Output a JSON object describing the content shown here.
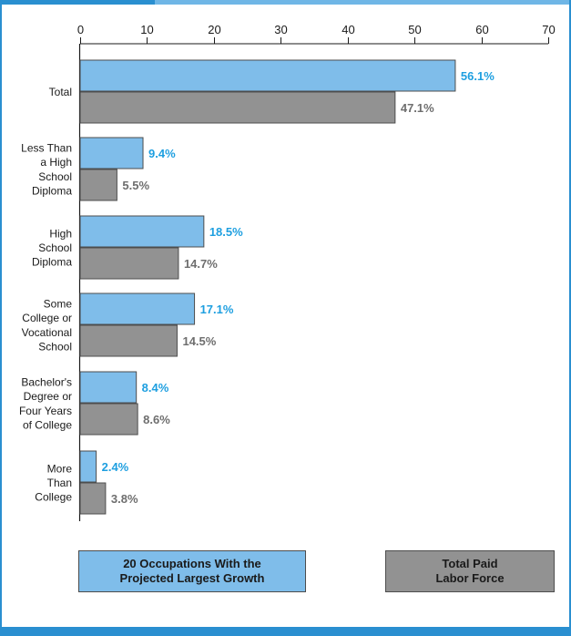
{
  "colors": {
    "frame_blue": "#2a8fd0",
    "series_a": "#7fbdea",
    "series_b": "#929292",
    "label_a": "#1e9fe0",
    "label_b": "#6e6e6e"
  },
  "chart_data": {
    "type": "bar",
    "orientation": "horizontal",
    "title": "",
    "xlabel": "",
    "ylabel": "",
    "xlim": [
      0,
      70
    ],
    "ticks": [
      0,
      10,
      20,
      30,
      40,
      50,
      60,
      70
    ],
    "tick_labels": [
      "0",
      "10",
      "20",
      "30",
      "40",
      "50",
      "60",
      "70"
    ],
    "axis_position": "top",
    "grid": false,
    "legend_position": "bottom",
    "categories": [
      [
        "Total"
      ],
      [
        "Less Than",
        "a High",
        "School",
        "Diploma"
      ],
      [
        "High",
        "School",
        "Diploma"
      ],
      [
        "Some",
        "College or",
        "Vocational",
        "School"
      ],
      [
        "Bachelor's",
        "Degree or",
        "Four Years",
        "of College"
      ],
      [
        "More",
        "Than",
        "College"
      ]
    ],
    "series": [
      {
        "name": "20 Occupations With the Projected Largest Growth",
        "legend_lines": [
          "20 Occupations With the",
          "Projected Largest Growth"
        ],
        "values": [
          56.1,
          9.4,
          18.5,
          17.1,
          8.4,
          2.4
        ],
        "labels": [
          "56.1%",
          "9.4%",
          "18.5%",
          "17.1%",
          "8.4%",
          "2.4%"
        ]
      },
      {
        "name": "Total Paid Labor Force",
        "legend_lines": [
          "Total Paid",
          "Labor Force"
        ],
        "values": [
          47.1,
          5.5,
          14.7,
          14.5,
          8.6,
          3.8
        ],
        "labels": [
          "47.1%",
          "5.5%",
          "14.7%",
          "14.5%",
          "8.6%",
          "3.8%"
        ]
      }
    ]
  }
}
